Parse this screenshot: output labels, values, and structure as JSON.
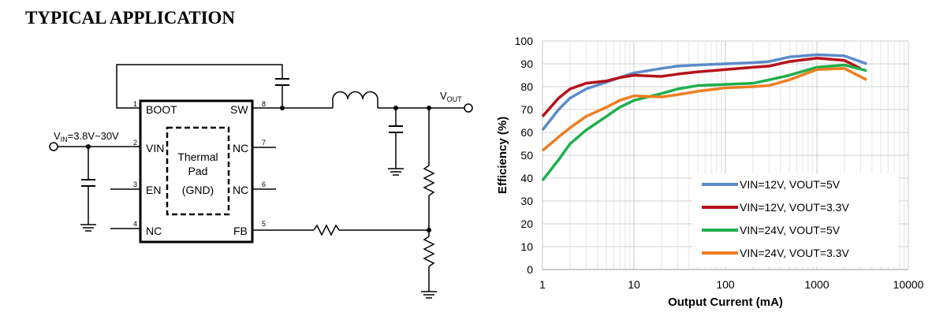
{
  "header": {
    "title": "TYPICAL APPLICATION"
  },
  "circuit": {
    "vin_label": {
      "main": "V",
      "sub": "IN",
      "rest": "=3.8V~30V"
    },
    "vout_label": {
      "main": "V",
      "sub": "OUT"
    },
    "pins": [
      {
        "number": "1",
        "name": "BOOT"
      },
      {
        "number": "2",
        "name": "VIN"
      },
      {
        "number": "3",
        "name": "EN"
      },
      {
        "number": "4",
        "name": "NC"
      },
      {
        "number": "5",
        "name": "FB"
      },
      {
        "number": "6",
        "name": "NC"
      },
      {
        "number": "7",
        "name": "NC"
      },
      {
        "number": "8",
        "name": "SW"
      }
    ],
    "pad_label": [
      "Thermal",
      "Pad",
      "(GND)"
    ]
  },
  "chart_data": {
    "type": "line",
    "xlabel": "Output Current (mA)",
    "ylabel": "Efficiency (%)",
    "log_x": true,
    "grid": true,
    "minor_grid": true,
    "legend": "lower right",
    "xlim": [
      1,
      10000
    ],
    "xticks": [
      1,
      10,
      100,
      1000,
      10000
    ],
    "ylim": [
      0,
      100
    ],
    "yticks": [
      0,
      10,
      20,
      30,
      40,
      50,
      60,
      70,
      80,
      90,
      100
    ],
    "series": [
      {
        "name": "VIN=12V, VOUT=5V",
        "color": "#5b8bc9",
        "x": [
          1,
          1.5,
          2,
          3,
          5,
          7,
          10,
          20,
          30,
          50,
          100,
          200,
          300,
          500,
          1000,
          2000,
          3500
        ],
        "values": [
          61,
          70,
          75,
          79,
          82,
          84,
          86,
          88,
          89,
          89.5,
          90,
          90.5,
          91,
          93,
          94,
          93.5,
          90
        ]
      },
      {
        "name": "VIN=12V, VOUT=3.3V",
        "color": "#b5121b",
        "x": [
          1,
          1.5,
          2,
          3,
          5,
          7,
          10,
          20,
          30,
          50,
          100,
          200,
          300,
          500,
          1000,
          2000,
          3000
        ],
        "values": [
          67,
          75,
          79,
          81.5,
          82.5,
          84,
          85,
          84.5,
          85.5,
          86.5,
          87.5,
          88.5,
          89,
          91,
          92.5,
          91.5,
          88
        ]
      },
      {
        "name": "VIN=24V, VOUT=5V",
        "color": "#1faf4b",
        "x": [
          1,
          1.5,
          2,
          3,
          5,
          7,
          10,
          20,
          30,
          50,
          100,
          200,
          300,
          500,
          1000,
          2000,
          3500
        ],
        "values": [
          39,
          48,
          55,
          61,
          67,
          71,
          74,
          77,
          79,
          80.5,
          81,
          81.5,
          83,
          85,
          88.5,
          89.5,
          87
        ]
      },
      {
        "name": "VIN=24V, VOUT=3.3V",
        "color": "#ee7d22",
        "x": [
          1,
          1.5,
          2,
          3,
          5,
          7,
          10,
          20,
          30,
          50,
          100,
          200,
          300,
          500,
          1000,
          2000,
          3500
        ],
        "values": [
          52,
          58,
          62,
          67,
          71,
          74,
          76,
          75.5,
          76.5,
          78,
          79.5,
          80,
          80.5,
          83,
          87.5,
          88,
          83
        ]
      }
    ]
  }
}
